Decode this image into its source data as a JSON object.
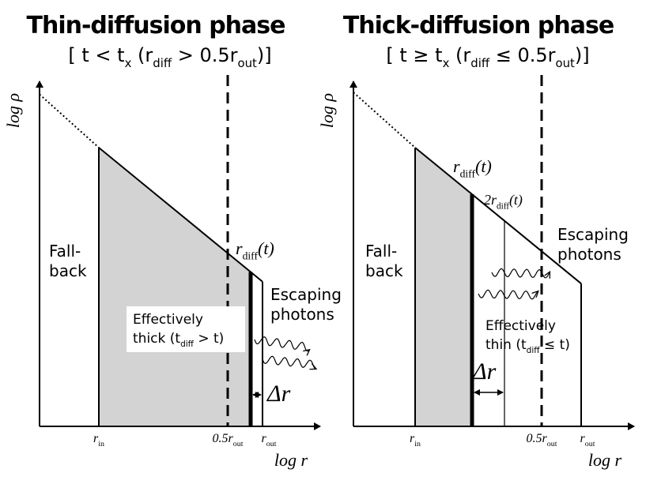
{
  "panels": [
    {
      "title": "Thin-diffusion phase",
      "subtitle": [
        "[ t < t",
        "x",
        " (r",
        "diff",
        " > 0.5r",
        "out",
        ")]"
      ],
      "y_label": "log ρ",
      "x_label": "log r",
      "ticks": [
        [
          "r",
          "in"
        ],
        [
          "0.5r",
          "out"
        ],
        [
          "r",
          "out"
        ]
      ],
      "fall_back": [
        "Fall-",
        "back"
      ],
      "radius_labels": [
        [
          "r",
          "diff",
          "(t)"
        ]
      ],
      "escaping": [
        "Escaping",
        "photons"
      ],
      "region": [
        "Effectively",
        [
          "thick (t",
          "diff",
          " > t)"
        ]
      ],
      "delta": "Δr"
    },
    {
      "title": "Thick-diffusion phase",
      "subtitle": [
        "[ t ≥ t",
        "x",
        " (r",
        "diff",
        " ≤ 0.5r",
        "out",
        ")]"
      ],
      "y_label": "log ρ",
      "x_label": "log r",
      "ticks": [
        [
          "r",
          "in"
        ],
        [
          "0.5r",
          "out"
        ],
        [
          "r",
          "out"
        ]
      ],
      "fall_back": [
        "Fall-",
        "back"
      ],
      "radius_labels": [
        [
          "r",
          "diff",
          "(t)"
        ],
        [
          "2r",
          "diff",
          "(t)"
        ]
      ],
      "escaping": [
        "Escaping",
        "photons"
      ],
      "region": [
        "Effectively",
        [
          "thin (t",
          "diff",
          " ≤ t)"
        ]
      ],
      "delta": "Δr"
    }
  ]
}
